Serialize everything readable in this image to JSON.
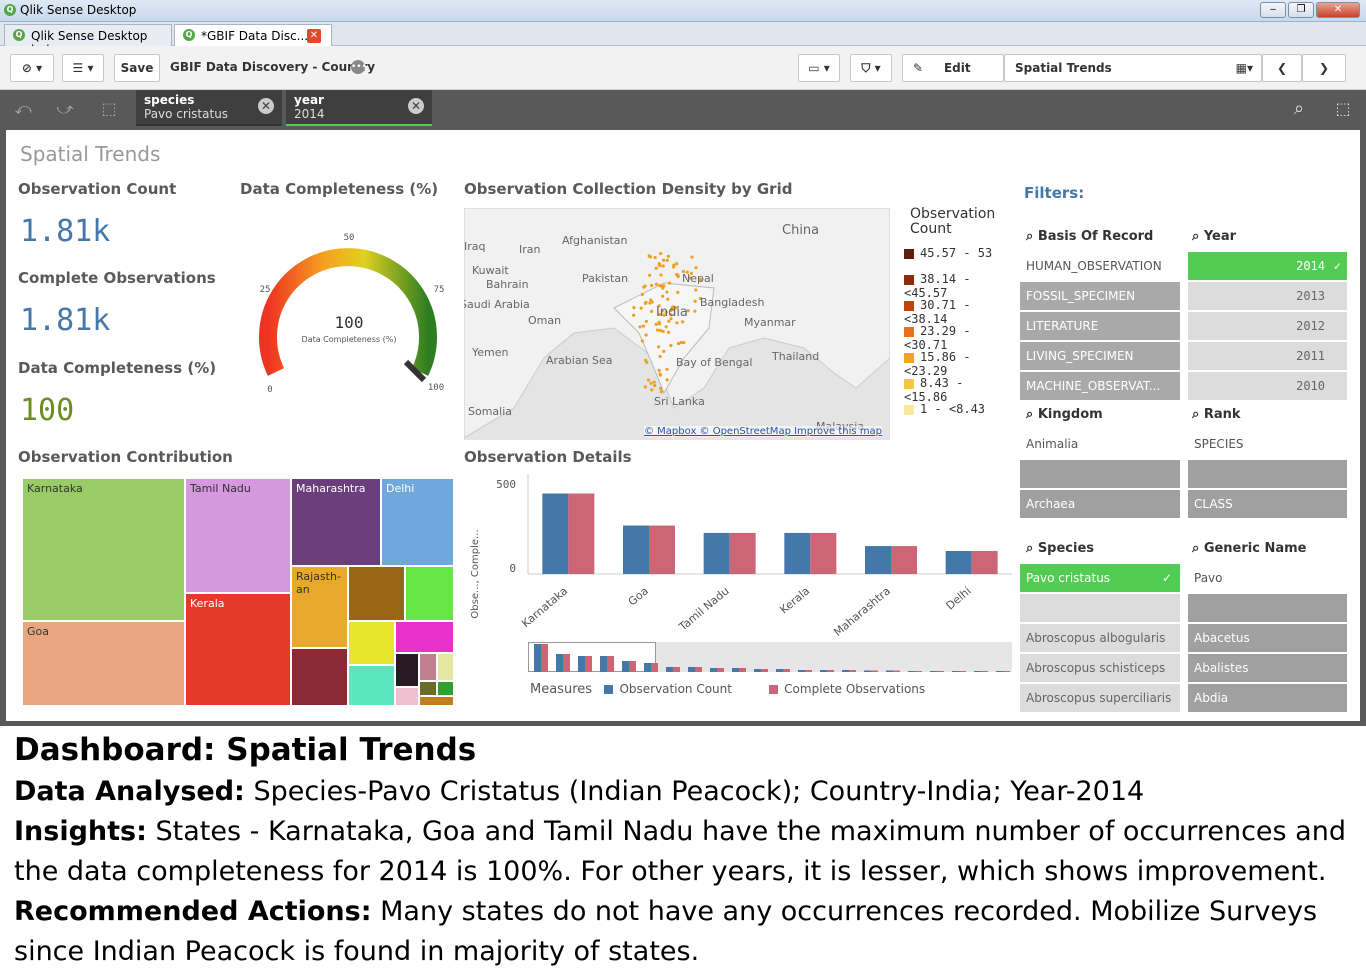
{
  "window": {
    "title": "Qlik Sense Desktop"
  },
  "tabs": [
    {
      "label": "Qlik Sense Desktop hub"
    },
    {
      "label": "*GBIF Data Disc..."
    }
  ],
  "toolbar": {
    "save_label": "Save",
    "app_title": "GBIF Data Discovery - Country",
    "edit_label": "Edit",
    "sheet_name": "Spatial Trends"
  },
  "selections": [
    {
      "field": "species",
      "value": "Pavo cristatus"
    },
    {
      "field": "year",
      "value": "2014"
    }
  ],
  "sheet": {
    "title": "Spatial Trends",
    "kpis": {
      "obs_count_label": "Observation Count",
      "obs_count_value": "1.81k",
      "complete_label": "Complete Observations",
      "complete_value": "1.81k",
      "completeness_label": "Data Completeness (%)",
      "completeness_value": "100",
      "completeness_color": "#6b8e23"
    },
    "gauge": {
      "title": "Data Completeness (%)",
      "value": 100,
      "value_label": "100",
      "sublabel": "Data Completeness (%)",
      "ticks": [
        "0",
        "25",
        "50",
        "75",
        "100"
      ]
    },
    "map": {
      "title": "Observation Collection Density by Grid",
      "labels": [
        "China",
        "Afghanistan",
        "Iran",
        "Iraq",
        "Kuwait",
        "Bahrain",
        "Pakistan",
        "Nepal",
        "Saudi Arabia",
        "Oman",
        "Bangladesh",
        "India",
        "Myanmar",
        "Yemen",
        "Arabian Sea",
        "Bay of Bengal",
        "Thailand",
        "Sri Lanka",
        "Somalia",
        "Malaysia"
      ],
      "attribution": "© Mapbox © OpenStreetMap Improve this map",
      "legend_title": "Observation Count",
      "legend": [
        {
          "label": "45.57 - 53",
          "color": "#5a1e0a"
        },
        {
          "label": "38.14 - <45.57",
          "color": "#8a2c0a"
        },
        {
          "label": "30.71 - <38.14",
          "color": "#c0420f"
        },
        {
          "label": "23.29 - <30.71",
          "color": "#e8701a"
        },
        {
          "label": "15.86 - <23.29",
          "color": "#f5a12c"
        },
        {
          "label": "8.43 - <15.86",
          "color": "#f7c544"
        },
        {
          "label": "1 - <8.43",
          "color": "#fbe8a0"
        }
      ]
    },
    "treemap": {
      "title": "Observation Contribution",
      "items": [
        "Karnataka",
        "Tamil Nadu",
        "Maharashtra",
        "Delhi",
        "Kerala",
        "Rajasth-an",
        "Goa"
      ]
    },
    "filters": {
      "title": "Filters:",
      "basis": {
        "label": "Basis Of Record",
        "items": [
          "HUMAN_OBSERVATION",
          "FOSSIL_SPECIMEN",
          "LITERATURE",
          "LIVING_SPECIMEN",
          "MACHINE_OBSERVAT..."
        ]
      },
      "year": {
        "label": "Year",
        "items": [
          "2014",
          "2013",
          "2012",
          "2011",
          "2010"
        ]
      },
      "kingdom": {
        "label": "Kingdom",
        "items": [
          "Animalia",
          "",
          "Archaea"
        ]
      },
      "rank": {
        "label": "Rank",
        "items": [
          "SPECIES",
          "",
          "CLASS"
        ]
      },
      "species": {
        "label": "Species",
        "items": [
          "Pavo cristatus",
          "",
          "Abroscopus albogularis",
          "Abroscopus schisticeps",
          "Abroscopus superciliaris"
        ]
      },
      "generic": {
        "label": "Generic Name",
        "items": [
          "Pavo",
          "",
          "Abacetus",
          "Abalistes",
          "Abdia"
        ]
      }
    }
  },
  "chart_data": {
    "type": "bar",
    "title": "Observation Details",
    "ylabel": "Obse..., Comple...",
    "categories": [
      "Karnataka",
      "Goa",
      "Tamil Nadu",
      "Kerala",
      "Maharashtra",
      "Delhi"
    ],
    "series": [
      {
        "name": "Observation Count",
        "values": [
          490,
          295,
          250,
          250,
          170,
          140
        ],
        "color": "#4477aa"
      },
      {
        "name": "Complete Observations",
        "values": [
          490,
          295,
          250,
          250,
          170,
          140
        ],
        "color": "#cc6677"
      }
    ],
    "yticks": [
      "500",
      "0"
    ],
    "ylim": [
      0,
      560
    ],
    "legend_title": "Measures"
  },
  "caption": {
    "heading": "Dashboard: Spatial Trends",
    "l1_bold": "Data Analysed:",
    "l1": " Species-Pavo Cristatus (Indian Peacock); Country-India; Year-2014",
    "l2_bold": "Insights:",
    "l2": " States - Karnataka, Goa and Tamil Nadu have the maximum number of occurrences and",
    "l3": "the data completeness for 2014 is 100%. For other years, it is lesser, which shows improvement.",
    "l4_bold": "Recommended Actions:",
    "l4": " Many states do not have any occurrences recorded. Mobilize Surveys",
    "l5": "since Indian Peacock is found in majority of states."
  }
}
